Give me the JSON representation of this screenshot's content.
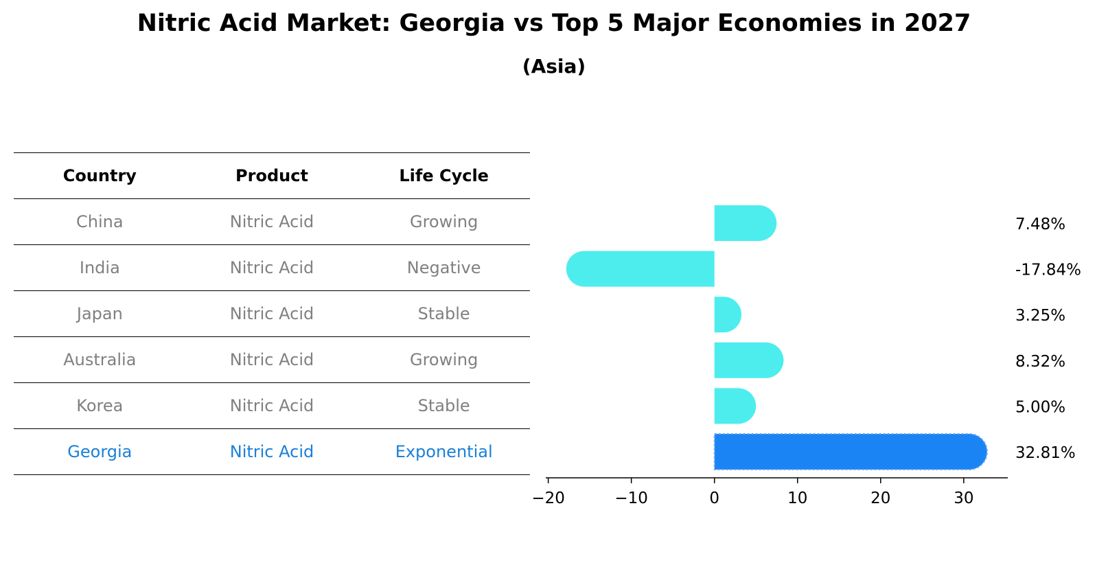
{
  "title": "Nitric Acid Market: Georgia vs Top 5 Major Economies in 2027",
  "subtitle": "(Asia)",
  "table": {
    "headers": [
      "Country",
      "Product",
      "Life Cycle"
    ],
    "rows": [
      {
        "country": "China",
        "product": "Nitric Acid",
        "life_cycle": "Growing"
      },
      {
        "country": "India",
        "product": "Nitric Acid",
        "life_cycle": "Negative"
      },
      {
        "country": "Japan",
        "product": "Nitric Acid",
        "life_cycle": "Stable"
      },
      {
        "country": "Australia",
        "product": "Nitric Acid",
        "life_cycle": "Growing"
      },
      {
        "country": "Korea",
        "product": "Nitric Acid",
        "life_cycle": "Stable"
      },
      {
        "country": "Georgia",
        "product": "Nitric Acid",
        "life_cycle": "Exponential"
      }
    ]
  },
  "chart_data": {
    "type": "bar",
    "orientation": "horizontal",
    "categories": [
      "China",
      "India",
      "Japan",
      "Australia",
      "Korea",
      "Georgia"
    ],
    "values": [
      7.48,
      -17.84,
      3.25,
      8.32,
      5.0,
      32.81
    ],
    "data_labels": [
      "7.48%",
      "-17.84%",
      "3.25%",
      "8.32%",
      "5.00%",
      "32.81%"
    ],
    "highlight": "Georgia",
    "xlim": [
      -20.3,
      35.3
    ],
    "xticks": [
      -20,
      -10,
      0,
      10,
      20,
      30
    ],
    "xtick_labels": [
      "−20",
      "−10",
      "0",
      "10",
      "20",
      "30"
    ],
    "grid": false,
    "colors": {
      "default": "#4deded",
      "highlight": "#1a84f4"
    }
  }
}
